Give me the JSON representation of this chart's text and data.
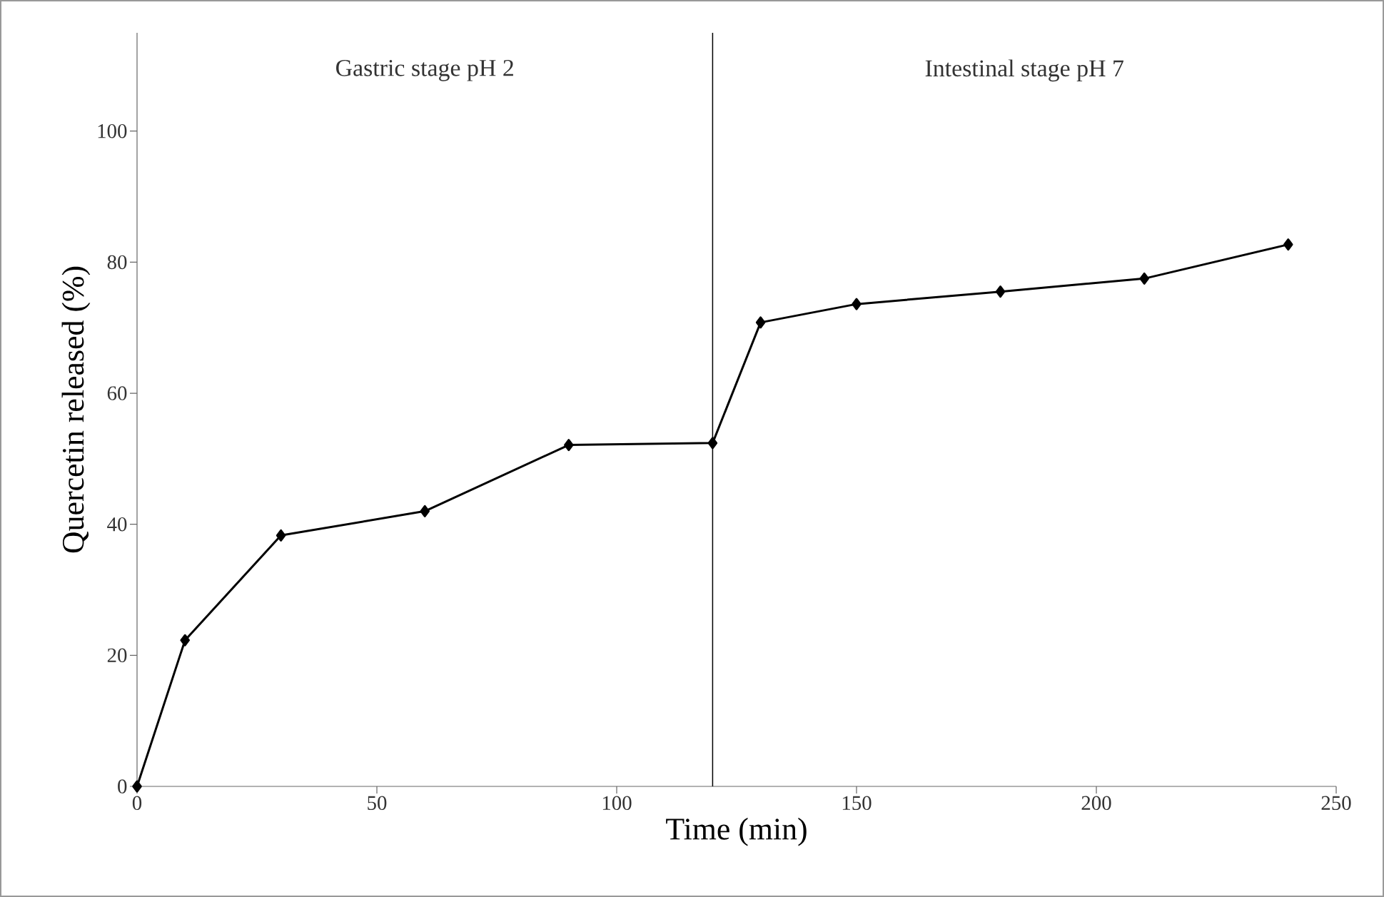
{
  "chart_data": {
    "type": "line",
    "xlabel": "Time (min)",
    "ylabel": "Quercetin released (%)",
    "x": [
      0,
      10,
      30,
      60,
      90,
      120,
      130,
      150,
      180,
      210,
      240
    ],
    "series": [
      {
        "color": "#000000",
        "values": [
          0,
          22.3,
          38.3,
          42.0,
          52.1,
          52.4,
          70.8,
          73.6,
          75.5,
          77.5,
          82.7
        ]
      }
    ],
    "xlim": [
      0,
      250
    ],
    "xticks": [
      0,
      50,
      100,
      150,
      200,
      250
    ],
    "ylim": [
      0,
      115
    ],
    "yticks": [
      0,
      20,
      40,
      60,
      80,
      100
    ],
    "ref_lines": [
      {
        "axis": "x",
        "value": 120,
        "color": "#000000"
      }
    ],
    "annotations": [
      "Gastric stage pH 2",
      "Intestinal stage pH 7"
    ],
    "marker": "diamond",
    "line_style": "solid",
    "grid": false
  }
}
